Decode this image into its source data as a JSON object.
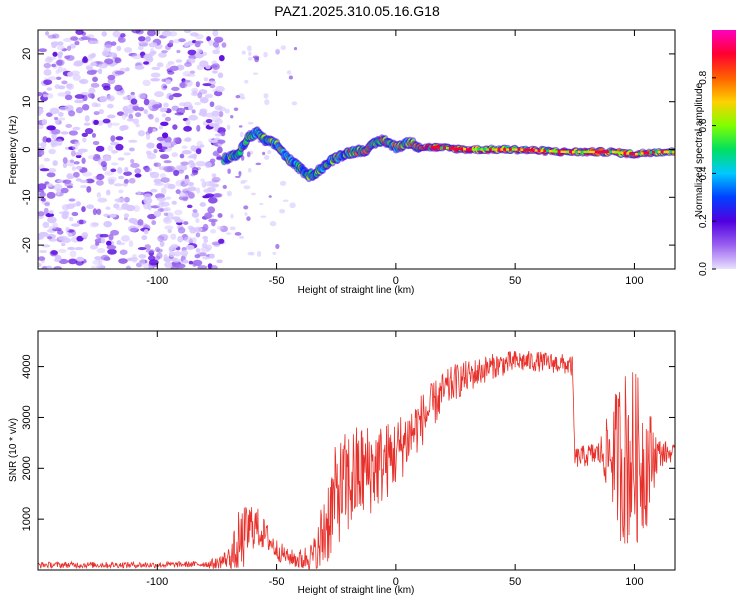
{
  "title": "PAZ1.2025.310.05.16.G18",
  "chart_data": [
    {
      "type": "heatmap",
      "id": "spectrogram",
      "xlabel": "Height of straight line (km)",
      "ylabel": "Frequency (Hz)",
      "xlim": [
        -150,
        117
      ],
      "ylim": [
        -25,
        25
      ],
      "xticks": [
        -100,
        -50,
        0,
        50,
        100
      ],
      "yticks": [
        -20,
        -10,
        0,
        10,
        20
      ],
      "colorbar": {
        "label": "Normalized spectral amplitude",
        "range": [
          0,
          1
        ],
        "ticks": [
          0.0,
          0.2,
          0.4,
          0.6,
          0.8
        ],
        "colormap": [
          "#e8e0ff",
          "#9a60f0",
          "#5000e0",
          "#0040ff",
          "#00c8ff",
          "#00e060",
          "#80ff00",
          "#ffd000",
          "#ff6000",
          "#ff0030",
          "#ff00c0"
        ]
      },
      "ridge": {
        "description": "main frequency trace (Hz) vs height (km)",
        "x": [
          -72,
          -66,
          -62,
          -58,
          -55,
          -50,
          -45,
          -40,
          -37,
          -34,
          -30,
          -26,
          -22,
          -18,
          -12,
          -8,
          -5,
          -2,
          0,
          3,
          6,
          10,
          15,
          30,
          50,
          70,
          90,
          100,
          108,
          117
        ],
        "y": [
          -2.0,
          -1.0,
          2.5,
          3.5,
          2.0,
          1.0,
          -2.0,
          -4.0,
          -5.5,
          -5.0,
          -3.5,
          -2.0,
          -1.0,
          -0.5,
          0.0,
          1.5,
          2.0,
          1.0,
          0.5,
          1.0,
          1.5,
          0.5,
          0.5,
          0.0,
          0.0,
          -0.5,
          -0.5,
          -1.0,
          -0.5,
          -0.5
        ]
      }
    },
    {
      "type": "line",
      "id": "snr",
      "xlabel": "Height of straight line (km)",
      "ylabel": "SNR (10 * v/v)",
      "xlim": [
        -150,
        117
      ],
      "ylim": [
        0,
        4700
      ],
      "xticks": [
        -100,
        -50,
        0,
        50,
        100
      ],
      "yticks": [
        1000,
        2000,
        3000,
        4000
      ],
      "color": "#e8302a",
      "envelope": {
        "x": [
          -150,
          -100,
          -75,
          -68,
          -64,
          -60,
          -55,
          -50,
          -45,
          -40,
          -33,
          -30,
          -27,
          -25,
          -20,
          -15,
          -10,
          -5,
          0,
          5,
          10,
          15,
          20,
          25,
          30,
          40,
          50,
          60,
          70,
          74,
          75,
          80,
          85,
          90,
          95,
          100,
          105,
          108,
          110,
          117
        ],
        "y": [
          100,
          100,
          120,
          300,
          600,
          900,
          700,
          400,
          250,
          200,
          300,
          800,
          1200,
          1500,
          1700,
          1900,
          2000,
          2100,
          2300,
          2600,
          2900,
          3200,
          3500,
          3700,
          3800,
          4000,
          4100,
          4100,
          4050,
          4000,
          2200,
          2250,
          2300,
          2300,
          2200,
          2200,
          2100,
          2250,
          2300,
          2300
        ]
      },
      "noise_amplitude": {
        "x": [
          -150,
          -80,
          -70,
          -66,
          -60,
          -55,
          -45,
          -35,
          -30,
          -20,
          -10,
          0,
          20,
          40,
          60,
          75,
          85,
          90,
          95,
          100,
          105,
          110,
          117
        ],
        "y": [
          60,
          60,
          200,
          700,
          500,
          300,
          150,
          300,
          900,
          1100,
          900,
          700,
          400,
          250,
          200,
          200,
          250,
          900,
          1800,
          1800,
          1300,
          300,
          150
        ]
      }
    }
  ]
}
